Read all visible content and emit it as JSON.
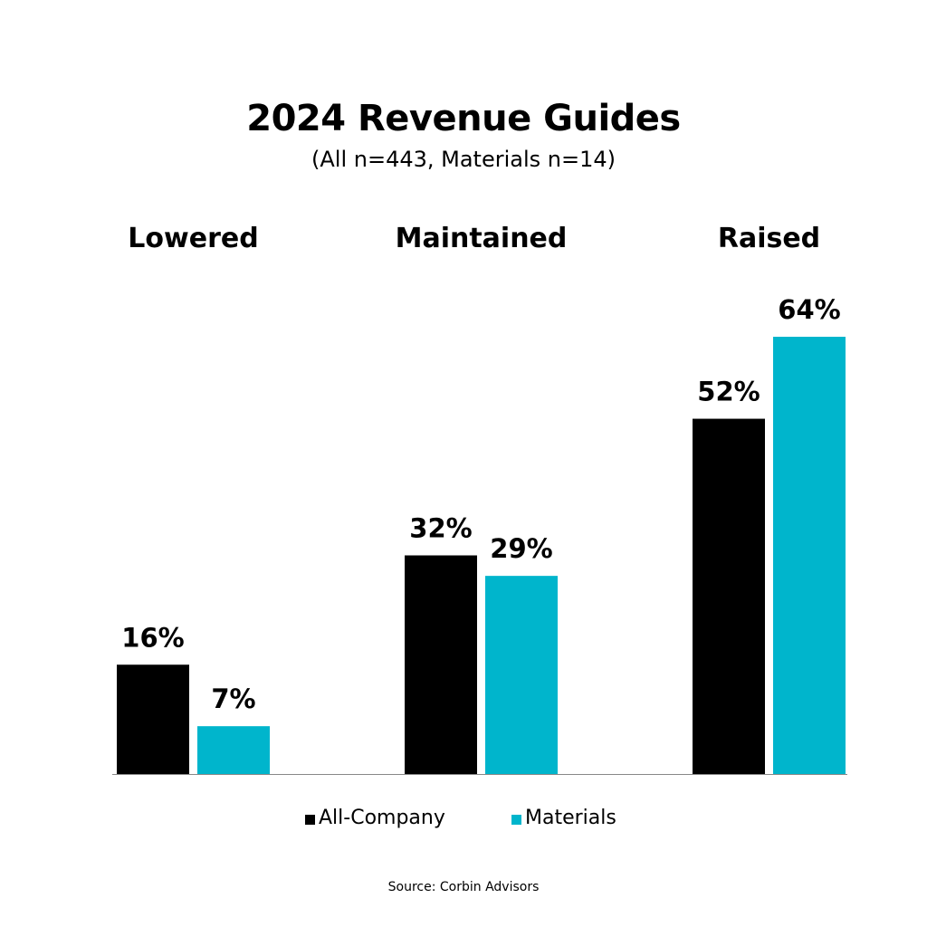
{
  "chart_data": {
    "type": "bar",
    "title": "2024 Revenue Guides",
    "subtitle": "(All n=443, Materials n=14)",
    "categories": [
      "Lowered",
      "Maintained",
      "Raised"
    ],
    "series": [
      {
        "name": "All-Company",
        "color": "#000000",
        "values": [
          16,
          32,
          52
        ],
        "labels": [
          "16%",
          "32%",
          "52%"
        ]
      },
      {
        "name": "Materials",
        "color": "#00B5CC",
        "values": [
          7,
          29,
          64
        ],
        "labels": [
          "7%",
          "29%",
          "64%"
        ]
      }
    ],
    "ylim": [
      0,
      64
    ],
    "xlabel": "",
    "ylabel": "",
    "grid": false,
    "legend_position": "bottom",
    "source": "Source: Corbin Advisors"
  }
}
